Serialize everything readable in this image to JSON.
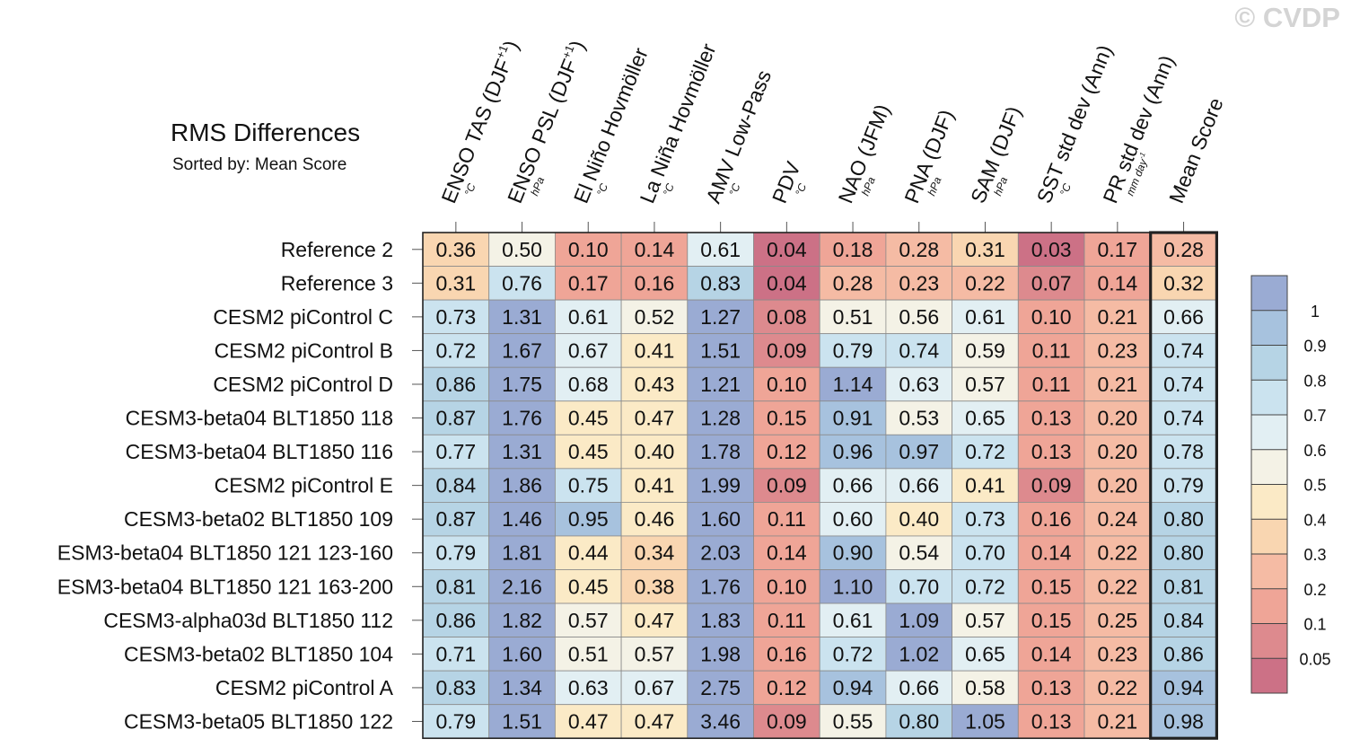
{
  "watermark": "© CVDP",
  "chart_data": {
    "type": "heatmap",
    "title": "RMS Differences",
    "subtitle": "Sorted by: Mean Score",
    "columns": [
      {
        "name": "ENSO TAS (DJF",
        "sup": "+1",
        "close": ")",
        "unit": "°C"
      },
      {
        "name": "ENSO PSL (DJF",
        "sup": "+1",
        "close": ")",
        "unit": "hPa"
      },
      {
        "name": "El Niño Hovmöller",
        "unit": "°C"
      },
      {
        "name": "La Niña Hovmöller",
        "unit": "°C"
      },
      {
        "name": "AMV Low-Pass",
        "unit": "°C"
      },
      {
        "name": "PDV",
        "unit": "°C"
      },
      {
        "name": "NAO (JFM)",
        "unit": "hPa"
      },
      {
        "name": "PNA (DJF)",
        "unit": "hPa"
      },
      {
        "name": "SAM (DJF)",
        "unit": "hPa"
      },
      {
        "name": "SST std dev (Ann)",
        "unit": "°C"
      },
      {
        "name": "PR std dev (Ann)",
        "unit": "mm day",
        "unit_sup": "-1"
      },
      {
        "name": "Mean Score",
        "unit": ""
      }
    ],
    "rows": [
      {
        "label": "Reference 2",
        "values": [
          0.36,
          0.5,
          0.1,
          0.14,
          0.61,
          0.04,
          0.18,
          0.28,
          0.31,
          0.03,
          0.17,
          0.28
        ]
      },
      {
        "label": "Reference 3",
        "values": [
          0.31,
          0.76,
          0.17,
          0.16,
          0.83,
          0.04,
          0.28,
          0.23,
          0.22,
          0.07,
          0.14,
          0.32
        ]
      },
      {
        "label": "CESM2 piControl C",
        "values": [
          0.73,
          1.31,
          0.61,
          0.52,
          1.27,
          0.08,
          0.51,
          0.56,
          0.61,
          0.1,
          0.21,
          0.66
        ]
      },
      {
        "label": "CESM2 piControl B",
        "values": [
          0.72,
          1.67,
          0.67,
          0.41,
          1.51,
          0.09,
          0.79,
          0.74,
          0.59,
          0.11,
          0.23,
          0.74
        ]
      },
      {
        "label": "CESM2 piControl D",
        "values": [
          0.86,
          1.75,
          0.68,
          0.43,
          1.21,
          0.1,
          1.14,
          0.63,
          0.57,
          0.11,
          0.21,
          0.74
        ]
      },
      {
        "label": "CESM3-beta04 BLT1850 118",
        "values": [
          0.87,
          1.76,
          0.45,
          0.47,
          1.28,
          0.15,
          0.91,
          0.53,
          0.65,
          0.13,
          0.2,
          0.74
        ]
      },
      {
        "label": "CESM3-beta04 BLT1850 116",
        "values": [
          0.77,
          1.31,
          0.45,
          0.4,
          1.78,
          0.12,
          0.96,
          0.97,
          0.72,
          0.13,
          0.2,
          0.78
        ]
      },
      {
        "label": "CESM2 piControl E",
        "values": [
          0.84,
          1.86,
          0.75,
          0.41,
          1.99,
          0.09,
          0.66,
          0.66,
          0.41,
          0.09,
          0.2,
          0.79
        ]
      },
      {
        "label": "CESM3-beta02 BLT1850 109",
        "values": [
          0.87,
          1.46,
          0.95,
          0.46,
          1.6,
          0.11,
          0.6,
          0.4,
          0.73,
          0.16,
          0.24,
          0.8
        ]
      },
      {
        "label": "ESM3-beta04 BLT1850 121 123-160",
        "values": [
          0.79,
          1.81,
          0.44,
          0.34,
          2.03,
          0.14,
          0.9,
          0.54,
          0.7,
          0.14,
          0.22,
          0.8
        ]
      },
      {
        "label": "ESM3-beta04 BLT1850 121 163-200",
        "values": [
          0.81,
          2.16,
          0.45,
          0.38,
          1.76,
          0.1,
          1.1,
          0.7,
          0.72,
          0.15,
          0.22,
          0.81
        ]
      },
      {
        "label": "CESM3-alpha03d BLT1850 112",
        "values": [
          0.86,
          1.82,
          0.57,
          0.47,
          1.83,
          0.11,
          0.61,
          1.09,
          0.57,
          0.15,
          0.25,
          0.84
        ]
      },
      {
        "label": "CESM3-beta02 BLT1850 104",
        "values": [
          0.71,
          1.6,
          0.51,
          0.57,
          1.98,
          0.16,
          0.72,
          1.02,
          0.65,
          0.14,
          0.23,
          0.86
        ]
      },
      {
        "label": "CESM2 piControl A",
        "values": [
          0.83,
          1.34,
          0.63,
          0.67,
          2.75,
          0.12,
          0.94,
          0.66,
          0.58,
          0.13,
          0.22,
          0.94
        ]
      },
      {
        "label": "CESM3-beta05 BLT1850 122",
        "values": [
          0.79,
          1.51,
          0.47,
          0.47,
          3.46,
          0.09,
          0.55,
          0.8,
          1.05,
          0.13,
          0.21,
          0.98
        ]
      }
    ],
    "colorbar": {
      "labels": [
        "1",
        "0.9",
        "0.8",
        "0.7",
        "0.6",
        "0.5",
        "0.4",
        "0.3",
        "0.2",
        "0.1",
        "0.05"
      ],
      "thresholds": [
        0.05,
        0.1,
        0.2,
        0.3,
        0.4,
        0.5,
        0.6,
        0.7,
        0.8,
        0.9,
        1.0
      ],
      "colors": [
        "#cc7186",
        "#dd8a8e",
        "#efa597",
        "#f5bba4",
        "#f9d6b1",
        "#fbeac6",
        "#f4f2e6",
        "#e2eff3",
        "#cbe3ef",
        "#b6d4e5",
        "#a7c2de",
        "#9aabd3"
      ]
    }
  }
}
